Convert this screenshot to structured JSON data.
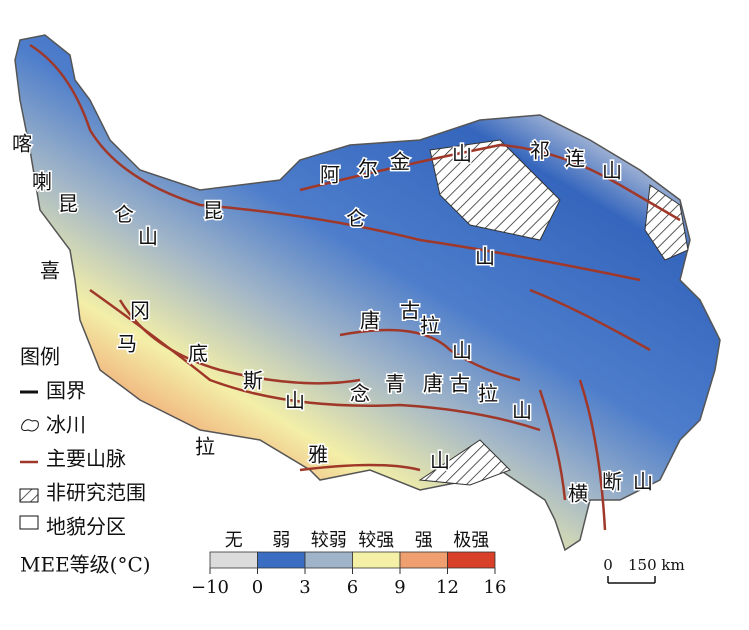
{
  "labels": [
    {
      "chars": [
        "喀",
        "喇",
        "昆",
        "仑",
        "山"
      ]
    },
    {
      "chars": [
        "昆",
        "仑",
        "山"
      ]
    },
    {
      "chars": [
        "阿",
        "尔",
        "金",
        "山"
      ]
    },
    {
      "chars": [
        "祁",
        "连",
        "山"
      ]
    },
    {
      "chars": [
        "喜",
        "马",
        "拉",
        "雅",
        "山"
      ]
    },
    {
      "chars": [
        "冈",
        "底",
        "斯",
        "山"
      ]
    },
    {
      "chars": [
        "唐",
        "古",
        "拉",
        "山"
      ]
    },
    {
      "chars": [
        "念",
        "青",
        "唐",
        "古",
        "拉",
        "山"
      ]
    },
    {
      "chars": [
        "横",
        "断",
        "山"
      ]
    }
  ],
  "legend": {
    "title": "图例",
    "items": [
      "国界",
      "冰川",
      "主要山脉",
      "非研究范围",
      "地貌分区"
    ]
  },
  "colorbar": {
    "title": "MEE等级(°C)",
    "classes": [
      "无",
      "弱",
      "较弱",
      "较强",
      "强",
      "极强"
    ],
    "colors": [
      "#dcdcdc",
      "#3b6dc2",
      "#9fb4c9",
      "#f4f0a6",
      "#f0a070",
      "#d8402a"
    ],
    "ticks": [
      {
        "value": -10,
        "label": "−10"
      },
      0,
      3,
      6,
      9,
      12,
      16
    ]
  },
  "scale_bar": {
    "start": "0",
    "end": "150 km"
  }
}
